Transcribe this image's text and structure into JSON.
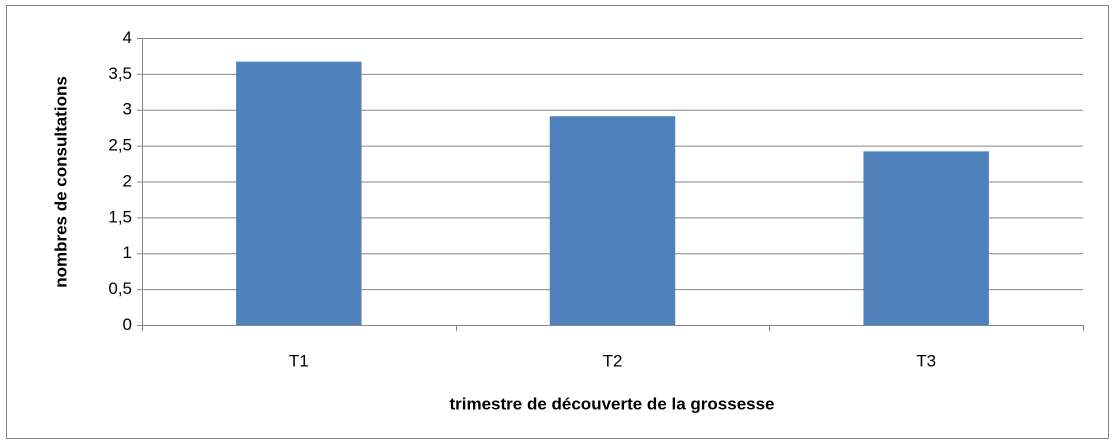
{
  "chart_data": {
    "type": "bar",
    "x_label": "trimestre de découverte de la grossesse",
    "y_label": "nombres de consultations",
    "categories": [
      "T1",
      "T2",
      "T3"
    ],
    "values": [
      3.67,
      2.91,
      2.42
    ],
    "color": "#4f81bd",
    "ylim": [
      0,
      4
    ],
    "yticks": [
      0,
      {
        "value": 0.5,
        "label": "0,5"
      },
      1,
      {
        "value": 1.5,
        "label": "1,5"
      },
      2,
      {
        "value": 2.5,
        "label": "2,5"
      },
      3,
      {
        "value": 3.5,
        "label": "3,5"
      },
      4
    ],
    "grid": true
  }
}
